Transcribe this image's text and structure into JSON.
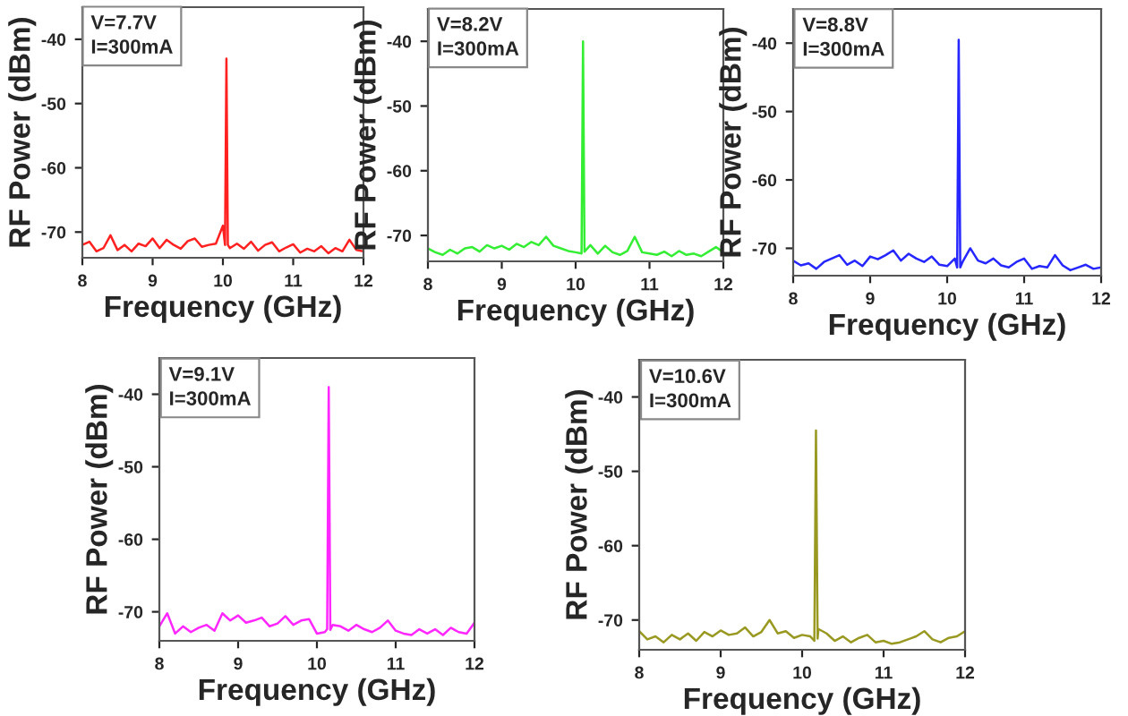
{
  "chart_data": [
    {
      "type": "line",
      "xlabel": "Frequency (GHz)",
      "ylabel": "RF Power (dBm)",
      "annotations": [
        "V=7.7V\nI=300mA"
      ],
      "xlim": [
        8,
        12
      ],
      "ylim": [
        -74,
        -35
      ],
      "xticks": [
        8,
        9,
        10,
        11,
        12
      ],
      "yticks": [
        -70,
        -60,
        -50,
        -40
      ],
      "grid": false,
      "legend": false,
      "x": [
        8.0,
        8.1,
        8.2,
        8.3,
        8.4,
        8.5,
        8.6,
        8.7,
        8.8,
        8.9,
        9.0,
        9.1,
        9.2,
        9.3,
        9.4,
        9.5,
        9.6,
        9.7,
        9.8,
        9.9,
        10.0,
        10.03,
        10.05,
        10.07,
        10.1,
        10.2,
        10.3,
        10.4,
        10.5,
        10.6,
        10.7,
        10.8,
        10.9,
        11.0,
        11.1,
        11.2,
        11.3,
        11.4,
        11.5,
        11.6,
        11.7,
        11.8,
        11.9,
        12.0
      ],
      "series": [
        {
          "color": "#ff2020",
          "values": [
            -72,
            -71.5,
            -73,
            -72.5,
            -70.5,
            -72.8,
            -72,
            -73,
            -71.8,
            -72.2,
            -71,
            -72.5,
            -71.2,
            -72,
            -72.6,
            -71.4,
            -71,
            -72.3,
            -72,
            -71.8,
            -69,
            -72,
            -43,
            -72,
            -72.5,
            -71.8,
            -72.6,
            -71.5,
            -72.9,
            -72,
            -71.6,
            -73,
            -72.4,
            -71.9,
            -73.2,
            -72.6,
            -73,
            -72.2,
            -73.3,
            -72.5,
            -73,
            -71.2,
            -72.8,
            -73
          ]
        }
      ]
    },
    {
      "type": "line",
      "xlabel": "Frequency (GHz)",
      "ylabel": "RF Power (dBm)",
      "annotations": [
        "V=8.2V\nI=300mA"
      ],
      "xlim": [
        8,
        12
      ],
      "ylim": [
        -74,
        -35
      ],
      "xticks": [
        8,
        9,
        10,
        11,
        12
      ],
      "yticks": [
        -70,
        -60,
        -50,
        -40
      ],
      "grid": false,
      "legend": false,
      "x": [
        8.0,
        8.1,
        8.2,
        8.3,
        8.4,
        8.5,
        8.6,
        8.7,
        8.8,
        8.9,
        9.0,
        9.1,
        9.2,
        9.3,
        9.4,
        9.5,
        9.6,
        9.7,
        9.8,
        9.9,
        10.0,
        10.08,
        10.1,
        10.12,
        10.2,
        10.3,
        10.4,
        10.5,
        10.6,
        10.7,
        10.8,
        10.9,
        11.0,
        11.1,
        11.2,
        11.3,
        11.4,
        11.5,
        11.6,
        11.7,
        11.8,
        11.9,
        12.0
      ],
      "series": [
        {
          "color": "#33ee33",
          "values": [
            -72,
            -72.6,
            -73,
            -72.2,
            -72.8,
            -72,
            -71.8,
            -72.5,
            -71.5,
            -72,
            -71.6,
            -72.2,
            -71.3,
            -71.8,
            -71,
            -71.5,
            -70.2,
            -71.6,
            -72,
            -72.4,
            -72.6,
            -72.8,
            -40,
            -72.5,
            -71.5,
            -72.8,
            -71.6,
            -72.6,
            -73,
            -72.4,
            -70.2,
            -72.6,
            -72.8,
            -73,
            -72.5,
            -73.2,
            -72.4,
            -73,
            -72.8,
            -73.2,
            -72.5,
            -71.8,
            -72.6
          ]
        }
      ]
    },
    {
      "type": "line",
      "xlabel": "Frequency (GHz)",
      "ylabel": "RF Power (dBm)",
      "annotations": [
        "V=8.8V\nI=300mA"
      ],
      "xlim": [
        8,
        12
      ],
      "ylim": [
        -74,
        -35
      ],
      "xticks": [
        8,
        9,
        10,
        11,
        12
      ],
      "yticks": [
        -70,
        -60,
        -50,
        -40
      ],
      "grid": false,
      "legend": false,
      "x": [
        8.0,
        8.1,
        8.2,
        8.3,
        8.4,
        8.5,
        8.6,
        8.7,
        8.8,
        8.9,
        9.0,
        9.1,
        9.2,
        9.3,
        9.4,
        9.5,
        9.6,
        9.7,
        9.8,
        9.9,
        10.0,
        10.1,
        10.13,
        10.15,
        10.17,
        10.2,
        10.3,
        10.4,
        10.5,
        10.6,
        10.7,
        10.8,
        10.9,
        11.0,
        11.1,
        11.2,
        11.3,
        11.4,
        11.5,
        11.6,
        11.7,
        11.8,
        11.9,
        12.0
      ],
      "series": [
        {
          "color": "#2626ff",
          "values": [
            -71.8,
            -72.5,
            -72.2,
            -73,
            -72,
            -71.5,
            -71,
            -72.4,
            -71.8,
            -72.6,
            -71.2,
            -71.6,
            -71,
            -70.3,
            -71.8,
            -70.8,
            -71.5,
            -72,
            -71.2,
            -72.4,
            -72.6,
            -71.5,
            -72.8,
            -39.5,
            -72.8,
            -72,
            -70,
            -71.8,
            -72.2,
            -71.5,
            -72.5,
            -72.8,
            -72,
            -71.5,
            -73,
            -72.6,
            -72.8,
            -71,
            -72.5,
            -73.2,
            -72.8,
            -72.4,
            -73,
            -72.8
          ]
        }
      ]
    },
    {
      "type": "line",
      "xlabel": "Frequency (GHz)",
      "ylabel": "RF Power (dBm)",
      "annotations": [
        "V=9.1V\nI=300mA"
      ],
      "xlim": [
        8,
        12
      ],
      "ylim": [
        -74,
        -35
      ],
      "xticks": [
        8,
        9,
        10,
        11,
        12
      ],
      "yticks": [
        -70,
        -60,
        -50,
        -40
      ],
      "grid": false,
      "legend": false,
      "x": [
        8.0,
        8.1,
        8.2,
        8.3,
        8.4,
        8.5,
        8.6,
        8.7,
        8.8,
        8.9,
        9.0,
        9.1,
        9.2,
        9.3,
        9.4,
        9.5,
        9.6,
        9.7,
        9.8,
        9.9,
        10.0,
        10.1,
        10.13,
        10.15,
        10.17,
        10.2,
        10.3,
        10.4,
        10.5,
        10.6,
        10.7,
        10.8,
        10.9,
        11.0,
        11.1,
        11.2,
        11.3,
        11.4,
        11.5,
        11.6,
        11.7,
        11.8,
        11.9,
        12.0
      ],
      "series": [
        {
          "color": "#ff26ff",
          "values": [
            -72,
            -70.2,
            -73,
            -72,
            -72.8,
            -72.2,
            -71.8,
            -72.6,
            -70.2,
            -71.2,
            -70.5,
            -71.5,
            -71.2,
            -70.8,
            -72,
            -71.6,
            -70.6,
            -71.8,
            -71.2,
            -71,
            -73,
            -72.8,
            -72.4,
            -39,
            -72.5,
            -71.8,
            -72,
            -72.6,
            -71.8,
            -72.4,
            -72.8,
            -72.2,
            -71.2,
            -72.6,
            -73,
            -73.2,
            -72.4,
            -73,
            -72.4,
            -73.2,
            -72.2,
            -72.8,
            -73,
            -71.5
          ]
        }
      ]
    },
    {
      "type": "line",
      "xlabel": "Frequency (GHz)",
      "ylabel": "RF Power (dBm)",
      "annotations": [
        "V=10.6V\nI=300mA"
      ],
      "xlim": [
        8,
        12
      ],
      "ylim": [
        -74,
        -35
      ],
      "xticks": [
        8,
        9,
        10,
        11,
        12
      ],
      "yticks": [
        -70,
        -60,
        -50,
        -40
      ],
      "grid": false,
      "legend": false,
      "x": [
        8.0,
        8.1,
        8.2,
        8.3,
        8.4,
        8.5,
        8.6,
        8.7,
        8.8,
        8.9,
        9.0,
        9.1,
        9.2,
        9.3,
        9.4,
        9.5,
        9.6,
        9.7,
        9.8,
        9.9,
        10.0,
        10.1,
        10.15,
        10.17,
        10.19,
        10.2,
        10.3,
        10.4,
        10.5,
        10.6,
        10.7,
        10.8,
        10.9,
        11.0,
        11.1,
        11.2,
        11.3,
        11.4,
        11.5,
        11.6,
        11.7,
        11.8,
        11.9,
        12.0
      ],
      "series": [
        {
          "color": "#999922",
          "values": [
            -71.5,
            -72.6,
            -72.2,
            -73,
            -72,
            -72.6,
            -71.8,
            -72.8,
            -71.6,
            -72.2,
            -71.4,
            -72,
            -71.8,
            -71,
            -72.2,
            -71.6,
            -70,
            -71.8,
            -71.5,
            -72.4,
            -72,
            -72.2,
            -72.8,
            -44.5,
            -72.5,
            -71.2,
            -71.8,
            -72.8,
            -72.2,
            -73,
            -72.4,
            -72,
            -73,
            -72.8,
            -73.2,
            -73,
            -72.6,
            -72.2,
            -71.5,
            -72.6,
            -73,
            -72.4,
            -72.2,
            -71.5
          ]
        }
      ]
    }
  ]
}
